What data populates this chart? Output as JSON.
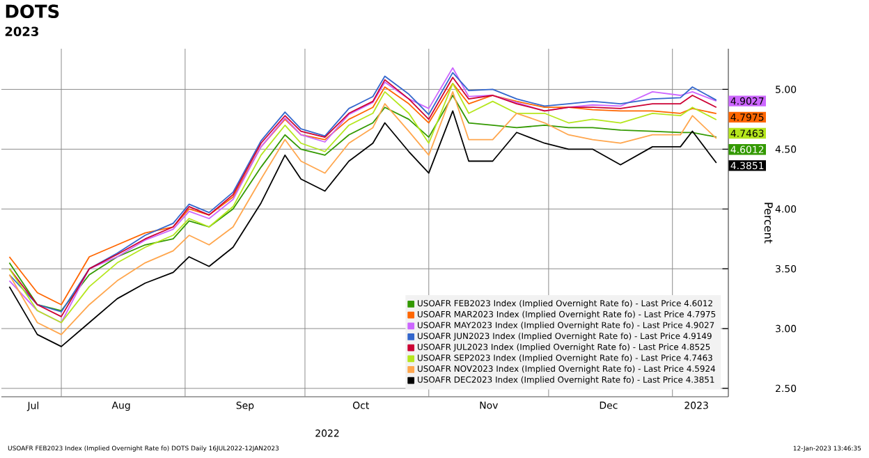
{
  "chart_data": {
    "type": "line",
    "title": "DOTS",
    "subtitle": "2023",
    "ylabel": "Percent",
    "x": [
      "2022-07-19",
      "2022-07-26",
      "2022-08-01",
      "2022-08-08",
      "2022-08-15",
      "2022-08-22",
      "2022-08-29",
      "2022-09-02",
      "2022-09-07",
      "2022-09-13",
      "2022-09-20",
      "2022-09-26",
      "2022-09-30",
      "2022-10-06",
      "2022-10-12",
      "2022-10-18",
      "2022-10-21",
      "2022-10-27",
      "2022-11-01",
      "2022-11-07",
      "2022-11-11",
      "2022-11-17",
      "2022-11-23",
      "2022-11-30",
      "2022-12-06",
      "2022-12-12",
      "2022-12-19",
      "2022-12-27",
      "2023-01-03",
      "2023-01-06",
      "2023-01-12"
    ],
    "xlim": [
      "2022-07-17",
      "2023-01-15"
    ],
    "xticks": [
      {
        "value": "2022-07-25",
        "label": "Jul"
      },
      {
        "value": "2022-08-01",
        "label": null
      },
      {
        "value": "2022-08-16",
        "label": "Aug"
      },
      {
        "value": "2022-09-01",
        "label": null
      },
      {
        "value": "2022-09-16",
        "label": "Sep"
      },
      {
        "value": "2022-10-01",
        "label": null
      },
      {
        "value": "2022-10-15",
        "label": "Oct"
      },
      {
        "value": "2022-11-01",
        "label": null
      },
      {
        "value": "2022-11-16",
        "label": "Nov"
      },
      {
        "value": "2022-12-01",
        "label": null
      },
      {
        "value": "2022-12-16",
        "label": "Dec"
      },
      {
        "value": "2023-01-01",
        "label": null
      },
      {
        "value": "2023-01-07",
        "label": "2023"
      }
    ],
    "ylim": [
      2.43,
      5.34
    ],
    "yticks": [
      {
        "value": 2.5,
        "label": "2.50"
      },
      {
        "value": 3.0,
        "label": "3.00"
      },
      {
        "value": 3.5,
        "label": "3.50"
      },
      {
        "value": 4.0,
        "label": "4.00"
      },
      {
        "value": 4.5,
        "label": "4.50"
      },
      {
        "value": 5.0,
        "label": "5.00"
      }
    ],
    "grid": true,
    "legend": "bottom right",
    "series": [
      {
        "name": "USOAFR FEB2023 Index (Implied Overnight Rate fo) - Last Price 4.6012",
        "color": "#339900",
        "values": [
          3.55,
          3.2,
          3.15,
          3.45,
          3.6,
          3.7,
          3.75,
          3.9,
          3.85,
          4.0,
          4.35,
          4.62,
          4.5,
          4.45,
          4.62,
          4.72,
          4.85,
          4.75,
          4.6,
          4.95,
          4.72,
          4.7,
          4.68,
          4.7,
          4.68,
          4.68,
          4.66,
          4.65,
          4.64,
          4.64,
          4.6012
        ],
        "value_labels": [
          null,
          null,
          null,
          null,
          null,
          null,
          null,
          null,
          null,
          null,
          null,
          null,
          null,
          null,
          null,
          null,
          null,
          null,
          null,
          null,
          null,
          null,
          null,
          null,
          null,
          null,
          null,
          null,
          null,
          null,
          "4.6012"
        ]
      },
      {
        "name": "USOAFR MAR2023 Index (Implied Overnight Rate fo) - Last Price 4.7975",
        "color": "#ff6600",
        "values": [
          3.6,
          3.3,
          3.2,
          3.6,
          3.7,
          3.8,
          3.85,
          4.0,
          3.95,
          4.1,
          4.52,
          4.75,
          4.62,
          4.58,
          4.75,
          4.85,
          5.02,
          4.88,
          4.72,
          5.05,
          4.88,
          4.95,
          4.9,
          4.85,
          4.85,
          4.83,
          4.82,
          4.82,
          4.8,
          4.84,
          4.7975
        ],
        "value_labels": [
          null,
          null,
          null,
          null,
          null,
          null,
          null,
          null,
          null,
          null,
          null,
          null,
          null,
          null,
          null,
          null,
          null,
          null,
          null,
          null,
          null,
          null,
          null,
          null,
          null,
          null,
          null,
          null,
          null,
          null,
          "4.7975"
        ]
      },
      {
        "name": "USOAFR MAY2023 Index (Implied Overnight Rate fo) - Last Price 4.9027",
        "color": "#cc66ff",
        "values": [
          3.4,
          3.15,
          3.05,
          3.5,
          3.6,
          3.74,
          3.83,
          3.98,
          3.92,
          4.08,
          4.52,
          4.76,
          4.62,
          4.56,
          4.79,
          4.89,
          5.06,
          4.92,
          4.84,
          5.18,
          4.94,
          4.95,
          4.89,
          4.82,
          4.85,
          4.87,
          4.86,
          4.98,
          4.95,
          4.98,
          4.9027
        ],
        "value_labels": [
          null,
          null,
          null,
          null,
          null,
          null,
          null,
          null,
          null,
          null,
          null,
          null,
          null,
          null,
          null,
          null,
          null,
          null,
          null,
          null,
          null,
          null,
          null,
          null,
          null,
          null,
          null,
          null,
          null,
          null,
          "4.9027"
        ]
      },
      {
        "name": "USOAFR JUN2023 Index (Implied Overnight Rate fo) - Last Price 4.9149",
        "color": "#3366cc",
        "values": [
          3.45,
          3.2,
          3.14,
          3.5,
          3.63,
          3.78,
          3.88,
          4.04,
          3.97,
          4.14,
          4.57,
          4.81,
          4.67,
          4.61,
          4.84,
          4.94,
          5.11,
          4.96,
          4.79,
          5.14,
          4.99,
          5.0,
          4.92,
          4.86,
          4.88,
          4.9,
          4.88,
          4.92,
          4.93,
          5.02,
          4.91
        ]
      },
      {
        "name": "USOAFR JUL2023 Index (Implied Overnight Rate fo) - Last Price 4.8525",
        "color": "#cc0033",
        "values": [
          3.5,
          3.2,
          3.1,
          3.5,
          3.62,
          3.75,
          3.85,
          4.02,
          3.95,
          4.12,
          4.55,
          4.78,
          4.65,
          4.6,
          4.8,
          4.9,
          5.08,
          4.92,
          4.75,
          5.1,
          4.92,
          4.95,
          4.88,
          4.82,
          4.85,
          4.85,
          4.84,
          4.88,
          4.88,
          4.95,
          4.85
        ]
      },
      {
        "name": "USOAFR SEP2023 Index (Implied Overnight Rate fo) - Last Price 4.7463",
        "color": "#b5e61d",
        "values": [
          3.5,
          3.15,
          3.05,
          3.35,
          3.55,
          3.68,
          3.78,
          3.92,
          3.85,
          4.02,
          4.45,
          4.7,
          4.55,
          4.48,
          4.7,
          4.8,
          4.98,
          4.8,
          4.55,
          5.05,
          4.8,
          4.9,
          4.8,
          4.8,
          4.72,
          4.75,
          4.72,
          4.8,
          4.78,
          4.85,
          4.7463
        ],
        "value_labels": [
          null,
          null,
          null,
          null,
          null,
          null,
          null,
          null,
          null,
          null,
          null,
          null,
          null,
          null,
          null,
          null,
          null,
          null,
          null,
          null,
          null,
          null,
          null,
          null,
          null,
          null,
          null,
          null,
          null,
          null,
          "4.7463"
        ]
      },
      {
        "name": "USOAFR NOV2023 Index (Implied Overnight Rate fo) - Last Price 4.5924",
        "color": "#ffa64d",
        "values": [
          3.45,
          3.05,
          2.95,
          3.2,
          3.4,
          3.55,
          3.65,
          3.78,
          3.7,
          3.85,
          4.25,
          4.58,
          4.4,
          4.3,
          4.55,
          4.68,
          4.88,
          4.65,
          4.45,
          4.98,
          4.58,
          4.58,
          4.8,
          4.72,
          4.62,
          4.58,
          4.55,
          4.62,
          4.62,
          4.78,
          4.59
        ]
      },
      {
        "name": "USOAFR DEC2023 Index (Implied Overnight Rate fo) - Last Price 4.3851",
        "color": "#000000",
        "values": [
          3.35,
          2.95,
          2.85,
          3.05,
          3.25,
          3.38,
          3.47,
          3.6,
          3.52,
          3.68,
          4.05,
          4.45,
          4.25,
          4.15,
          4.4,
          4.55,
          4.72,
          4.48,
          4.3,
          4.82,
          4.4,
          4.4,
          4.64,
          4.55,
          4.5,
          4.5,
          4.37,
          4.52,
          4.52,
          4.65,
          4.3851
        ],
        "value_labels": [
          null,
          null,
          null,
          null,
          null,
          null,
          null,
          null,
          null,
          null,
          null,
          null,
          null,
          null,
          null,
          null,
          null,
          null,
          null,
          null,
          null,
          null,
          null,
          null,
          null,
          null,
          null,
          null,
          null,
          null,
          "4.3851"
        ]
      }
    ],
    "annotations": [
      "2022",
      "USOAFR FEB2023 Index (Implied Overnight Rate fo) DOTS Daily 16JUL2022-12JAN2023",
      "12-Jan-2023 13:46:35"
    ]
  }
}
